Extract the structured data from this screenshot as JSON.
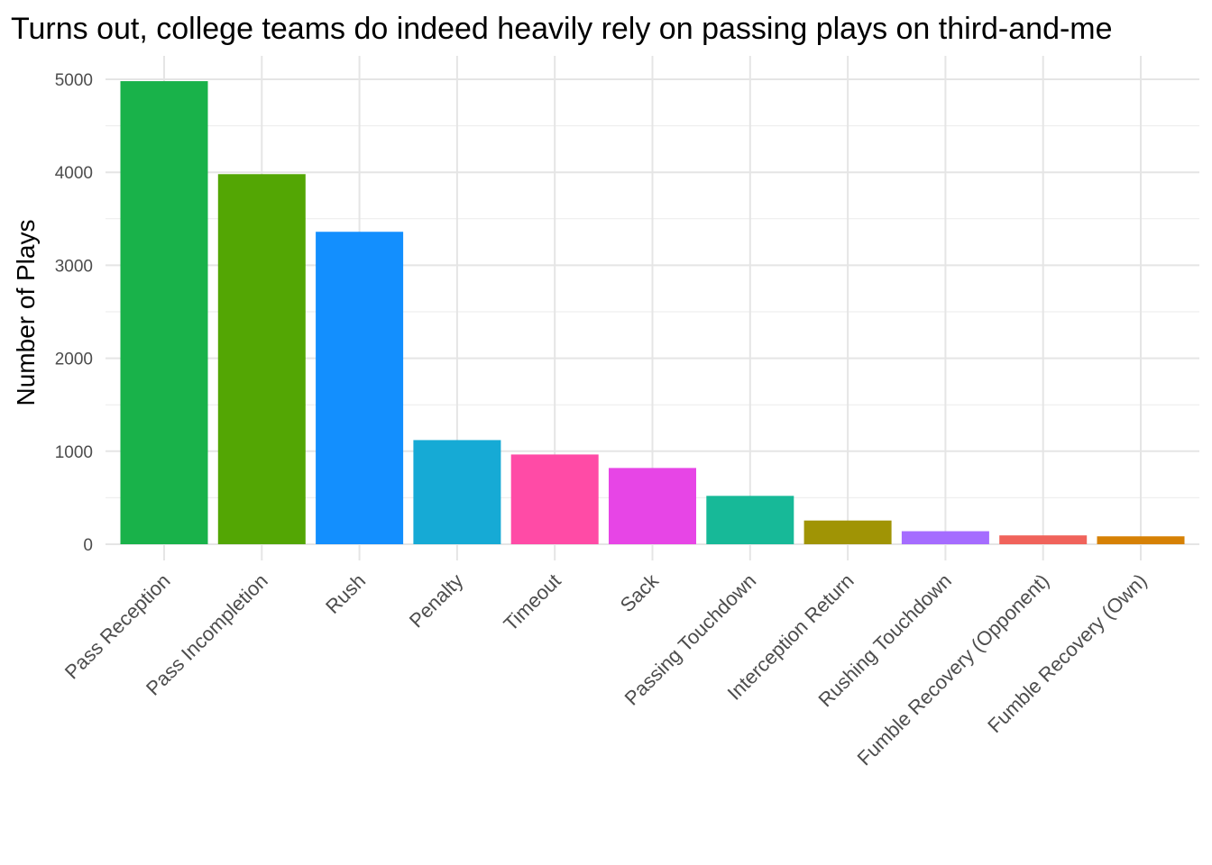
{
  "chart_data": {
    "type": "bar",
    "title": "Turns out, college teams do indeed heavily rely on passing plays on third-and-me",
    "xlabel": "",
    "ylabel": "Number of Plays",
    "ylim": [
      0,
      5000
    ],
    "yticks": [
      0,
      1000,
      2000,
      3000,
      4000,
      5000
    ],
    "grid": true,
    "legend": "none",
    "categories": [
      "Pass Reception",
      "Pass Incompletion",
      "Rush",
      "Penalty",
      "Timeout",
      "Sack",
      "Passing Touchdown",
      "Interception Return",
      "Rushing Touchdown",
      "Fumble Recovery (Opponent)",
      "Fumble Recovery (Own)"
    ],
    "values": [
      4980,
      3980,
      3360,
      1120,
      965,
      820,
      520,
      255,
      140,
      95,
      85
    ],
    "colors": [
      "#19b24a",
      "#53a604",
      "#138ffe",
      "#16aad5",
      "#ff4ba6",
      "#e745e6",
      "#17b998",
      "#a09405",
      "#a56cff",
      "#f0635b",
      "#d68105"
    ]
  }
}
